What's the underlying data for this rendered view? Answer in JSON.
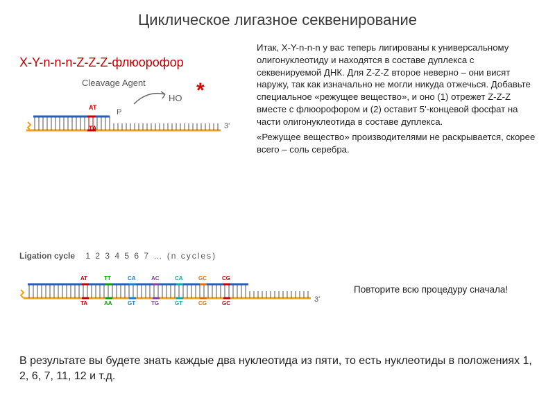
{
  "title": "Циклическое лигазное секвенирование",
  "formula": "X-Y-n-n-n-Z-Z-Z-флюорофор",
  "cleavage_label": "Cleavage Agent",
  "ho_label": "HO",
  "asterisk": "*",
  "at": "AT",
  "ta": "TA",
  "p": "P",
  "three_prime": "3'",
  "body_p1": "Итак, X-Y-n-n-n у вас теперь лигированы к универсальному олигонуклеотиду и находятся в составе дуплекса с секвенируемой ДНК. Для Z-Z-Z второе неверно – они висят наружу, так как изначально не могли никуда отжечься. Добавьте специальное «режущее вещество», и оно (1) отрежет Z-Z-Z вместе с флюорофором и (2) оставит 5'-концевой фосфат на части олигонуклеотида в составе дуплекса.",
  "body_p2": "«Режущее вещество» производителями не раскрывается, скорее всего – соль серебра.",
  "ligation_label": "Ligation cycle",
  "ligation_values": "1     2     3     4     5     6     7 … (n cycles)",
  "repeat": "Повторите всю процедуру сначала!",
  "result": "В результате вы будете знать каждые два нуклеотида из пяти, то есть нуклеотиды в положениях 1, 2, 6, 7, 11, 12 и т.д.",
  "colors": {
    "template_strand": "#f0a020",
    "primer_strand": "#2060c0",
    "tick": "#505050",
    "red": "#c00000",
    "pair_colors": [
      "#c00000",
      "#00a000",
      "#1080d0",
      "#8040a0",
      "#00aaaa",
      "#e07000",
      "#c00000"
    ],
    "pairs_top": [
      "AT",
      "TT",
      "CA",
      "AC",
      "CA",
      "GC",
      "CG"
    ],
    "pairs_bot": [
      "TA",
      "AA",
      "GT",
      "TG",
      "GT",
      "CG",
      "GC"
    ]
  }
}
